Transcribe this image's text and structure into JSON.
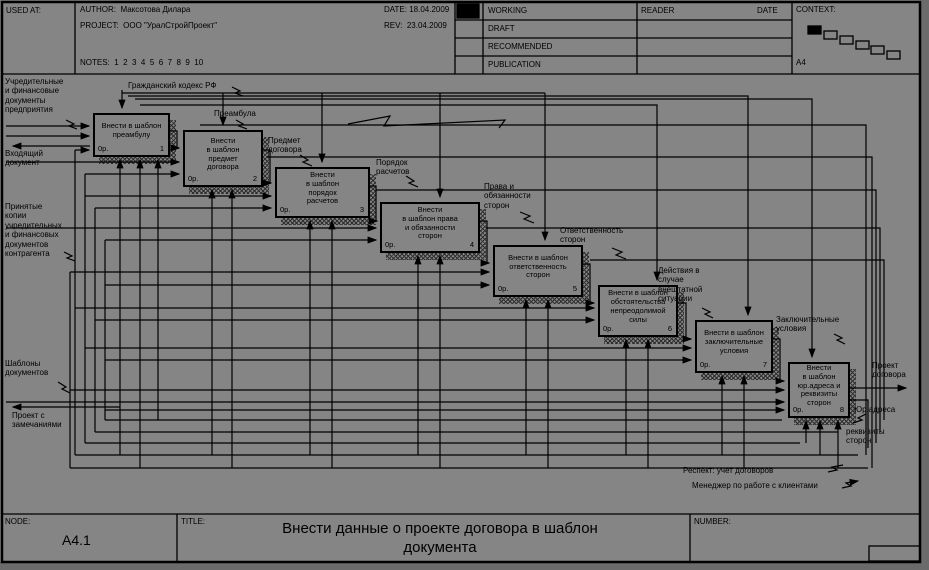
{
  "colors": {
    "page_bg": "#858585",
    "margin_bg": "#6b6b6b",
    "ink": "#000000"
  },
  "header": {
    "used_at_label": "USED AT:",
    "author_label": "AUTHOR:",
    "author": "Максотова Дилара",
    "project_label": "PROJECT:",
    "project": "ООО \"УралСтройПроект\"",
    "date_label": "DATE:",
    "date": "18.04.2009",
    "rev_label": "REV:",
    "rev": "23.04.2009",
    "notes_label": "NOTES:",
    "notes": "1  2  3  4  5  6  7  8  9  10",
    "status_rows": [
      "WORKING",
      "DRAFT",
      "RECOMMENDED",
      "PUBLICATION"
    ],
    "reader_label": "READER",
    "date_col_label": "DATE",
    "context_label": "CONTEXT:",
    "context_page": "A4"
  },
  "footer": {
    "node_label": "NODE:",
    "node": "A4.1",
    "title_label": "TITLE:",
    "title": "Внести данные о проекте договора в шаблон\nдокумента",
    "number_label": "NUMBER:"
  },
  "activities": [
    {
      "label": "Внести в шаблон\nпреамбулу",
      "cost": "0р.",
      "number": "1"
    },
    {
      "label": "Внести\nв шаблон\nпредмет\nдоговора",
      "cost": "0р.",
      "number": "2"
    },
    {
      "label": "Внести\nв шаблон\nпорядок\nрасчетов",
      "cost": "0р.",
      "number": "3"
    },
    {
      "label": "Внести\nв шаблон права\nи обязанности\nсторон",
      "cost": "0р.",
      "number": "4"
    },
    {
      "label": "Внести в шаблон\nответственность\nсторон",
      "cost": "0р.",
      "number": "5"
    },
    {
      "label": "Внести в шаблон\nобстоятельства\nнепреодолимой\nсилы",
      "cost": "0р.",
      "number": "6"
    },
    {
      "label": "Внести в шаблон\nзаключительные\nусловия",
      "cost": "0р.",
      "number": "7"
    },
    {
      "label": "Внести\nв шаблон\nюр.адреса и\nреквизиты\nсторон",
      "cost": "0р.",
      "number": "8"
    }
  ],
  "arrow_labels": [
    {
      "id": "grazhdansky-kodeks",
      "text": "Гражданский кодекс РФ"
    },
    {
      "id": "uchreditelnye-dokumenty",
      "text": "Учредительные\nи финансовые\nдокументы\nпредприятия"
    },
    {
      "id": "vhodyashchiy-dokument",
      "text": "Входящий\nдокумент"
    },
    {
      "id": "prinyatye-kopii",
      "text": "Принятые\nкопии\nучредительных\nи финансовых\nдокументов\nконтрагента"
    },
    {
      "id": "shablony-dokumentov",
      "text": "Шаблоны\nдокументов"
    },
    {
      "id": "proekt-s-zamechaniyami",
      "text": "Проект с\nзамечаниями"
    },
    {
      "id": "preambula",
      "text": "Преамбула"
    },
    {
      "id": "predmet-dogovora",
      "text": "Предмет\nдоговора"
    },
    {
      "id": "poryadok-raschetov",
      "text": "Порядок\nрасчетов"
    },
    {
      "id": "prava-i-obyazannosti",
      "text": "Права и\nобязанности\nсторон"
    },
    {
      "id": "otvetstvennost-storon",
      "text": "Ответственность\nсторон"
    },
    {
      "id": "deystviya-vneshtatnoy",
      "text": "Действия в\nслучае\nвнештатной\nситуации"
    },
    {
      "id": "zaklyuchitelnye-usloviya",
      "text": "Заключительные\nусловия"
    },
    {
      "id": "proekt-dogovora",
      "text": "Проект\nдоговора"
    },
    {
      "id": "yur-adresa",
      "text": "Юр.адреса"
    },
    {
      "id": "rekvizity-storon",
      "text": "реквизиты\nсторон"
    },
    {
      "id": "respekt-uchet-dogovorov",
      "text": "Респект: учет договоров"
    },
    {
      "id": "menedzher-po-rabote",
      "text": "Менеджер по работе с клиентами"
    }
  ]
}
